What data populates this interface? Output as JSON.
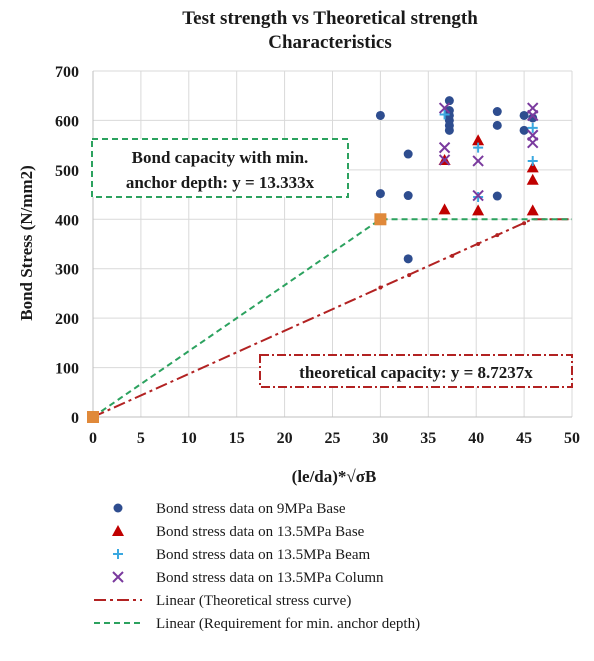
{
  "chart_data": {
    "type": "scatter",
    "title": "Test strength vs Theoretical strength",
    "subtitle": "Characteristics",
    "xlabel": "(le/da)*√σB",
    "ylabel": "Bond Stress (N/mm2)",
    "xlim": [
      0,
      50
    ],
    "ylim": [
      0,
      700
    ],
    "xticks": [
      "0",
      "5",
      "10",
      "15",
      "20",
      "25",
      "30",
      "35",
      "40",
      "45",
      "50"
    ],
    "yticks": [
      "0",
      "100",
      "200",
      "300",
      "400",
      "500",
      "600",
      "700"
    ],
    "grid": true,
    "legend_position": "bottom",
    "series": [
      {
        "name": "Bond stress data on 9MPa Base",
        "marker": "circle",
        "color": "#2e4d8f",
        "points": [
          [
            30,
            610
          ],
          [
            30,
            452
          ],
          [
            32.9,
            532
          ],
          [
            32.9,
            448
          ],
          [
            32.9,
            320
          ],
          [
            37.2,
            640
          ],
          [
            37.2,
            620
          ],
          [
            37.2,
            610
          ],
          [
            37.2,
            600
          ],
          [
            37.2,
            590
          ],
          [
            37.2,
            580
          ],
          [
            42.2,
            618
          ],
          [
            42.2,
            590
          ],
          [
            42.2,
            447
          ],
          [
            45,
            610
          ],
          [
            45,
            580
          ],
          [
            45.9,
            605
          ]
        ]
      },
      {
        "name": "Bond stress data on 13.5MPa Base",
        "marker": "triangle",
        "color": "#c00000",
        "points": [
          [
            36.7,
            520
          ],
          [
            36.7,
            420
          ],
          [
            40.2,
            560
          ],
          [
            40.2,
            418
          ],
          [
            45.9,
            505
          ],
          [
            45.9,
            480
          ],
          [
            45.9,
            418
          ]
        ]
      },
      {
        "name": "Bond stress data on 13.5MPa Beam",
        "marker": "plus",
        "color": "#3aa8e0",
        "points": [
          [
            36.7,
            612
          ],
          [
            40.2,
            545
          ],
          [
            40.2,
            445
          ],
          [
            45.9,
            585
          ],
          [
            45.9,
            518
          ]
        ]
      },
      {
        "name": "Bond stress data on 13.5MPa Column",
        "marker": "x",
        "color": "#7a3a9e",
        "points": [
          [
            36.7,
            625
          ],
          [
            36.7,
            545
          ],
          [
            36.7,
            520
          ],
          [
            40.2,
            518
          ],
          [
            40.2,
            448
          ],
          [
            45.9,
            625
          ],
          [
            45.9,
            610
          ],
          [
            45.9,
            570
          ],
          [
            45.9,
            555
          ]
        ]
      }
    ],
    "lines": [
      {
        "name": "Linear (Theoretical stress curve)",
        "style": "dash-dot",
        "color": "#b22222",
        "points": [
          [
            0,
            0
          ],
          [
            45.85,
            400
          ],
          [
            50,
            400
          ]
        ]
      },
      {
        "name": "Linear (Requirement for min. anchor depth)",
        "style": "dashed",
        "color": "#2ca25f",
        "points": [
          [
            0,
            0
          ],
          [
            30,
            400
          ],
          [
            50,
            400
          ]
        ]
      }
    ],
    "special_points": {
      "color": "#e0893a",
      "points": [
        [
          0,
          0
        ],
        [
          30,
          400
        ]
      ]
    },
    "annotations": [
      {
        "id": "min-depth",
        "lines": [
          "Bond capacity with min.",
          "anchor depth: y = 13.333x"
        ],
        "border_color": "#2ca25f"
      },
      {
        "id": "theoretical",
        "lines": [
          "theoretical capacity: y = 8.7237x"
        ],
        "border_color": "#b22222"
      }
    ]
  }
}
